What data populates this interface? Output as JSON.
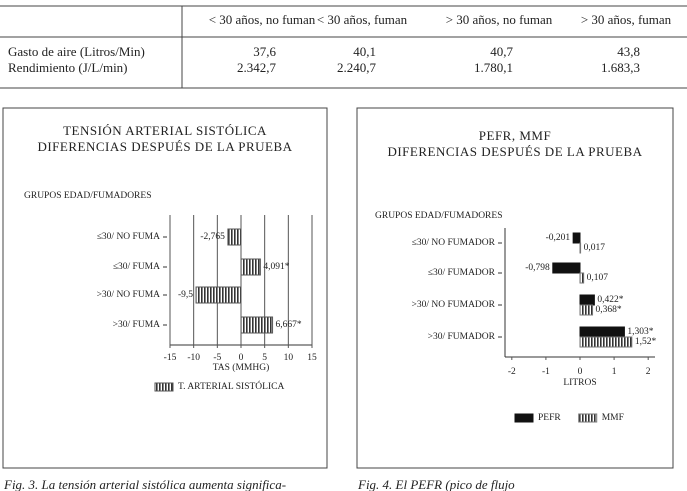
{
  "table": {
    "header": [
      "< 30 años, no fuman",
      "< 30 años, fuman",
      "> 30 años, no fuman",
      "> 30 años, fuman"
    ],
    "rows": [
      [
        "Gasto de aire (Litros/Min)",
        "37,6",
        "40,1",
        "40,7",
        "43,8"
      ],
      [
        "Rendimiento (J/L/min)",
        "2.342,7",
        "2.240,7",
        "1.780,1",
        "1.683,3"
      ]
    ]
  },
  "chart_data": [
    {
      "type": "hbar",
      "title": "TENSIÓN ARTERIAL SISTÓLICA",
      "subtitle": "DIFERENCIAS DESPUÉS DE LA PRUEBA",
      "y_label": "GRUPOS EDAD/FUMADORES",
      "categories": [
        "≤30/ NO FUMA",
        "≤30/ FUMA",
        ">30/ NO FUMA",
        ">30/ FUMA"
      ],
      "series": [
        {
          "name": "T. ARTERIAL SISTÓLICA",
          "color": "#555555",
          "hatch": true,
          "values": [
            -2.765,
            4.091,
            -9.5,
            6.667
          ],
          "value_labels": [
            "-2,765",
            "4,091*",
            "-9,5",
            "6,667*"
          ]
        }
      ],
      "x_label": "TAS (MMHG)",
      "xlim": [
        -15,
        15
      ],
      "xticks": [
        -15,
        -10,
        -5,
        0,
        5,
        10,
        15
      ],
      "grid": true
    },
    {
      "type": "hbar",
      "title": "PEFR, MMF",
      "subtitle": "DIFERENCIAS DESPUÉS DE LA PRUEBA",
      "y_label": "GRUPOS EDAD/FUMADORES",
      "categories": [
        "≤30/ NO FUMADOR",
        "≤30/ FUMADOR",
        ">30/ NO FUMADOR",
        ">30/ FUMADOR"
      ],
      "series": [
        {
          "name": "PEFR",
          "color": "#111111",
          "hatch": false,
          "values": [
            -0.201,
            -0.798,
            0.422,
            1.303
          ],
          "value_labels": [
            "-0,201",
            "-0,798",
            "0,422*",
            "1,303*"
          ]
        },
        {
          "name": "MMF",
          "color": "#777777",
          "hatch": true,
          "values": [
            0.017,
            0.107,
            0.368,
            1.52
          ],
          "value_labels": [
            "0,017",
            "0,107",
            "0,368*",
            "1,52*"
          ]
        }
      ],
      "x_label": "LITROS",
      "xlim": [
        -2.2,
        2.2
      ],
      "xticks": [
        -2,
        -1,
        0,
        1,
        2
      ],
      "grid": false
    }
  ],
  "captions": [
    "Fig. 3. La tensión arterial sistólica aumenta significa-",
    "Fig. 4. El PEFR (pico de flujo"
  ]
}
